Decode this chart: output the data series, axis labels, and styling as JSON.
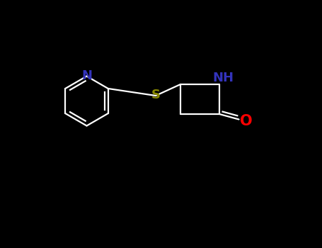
{
  "background_color": "#000000",
  "bond_color": "#ffffff",
  "N_color": "#3333bb",
  "S_color": "#888800",
  "O_color": "#ff0000",
  "NH_color": "#3333bb",
  "font_size_atoms": 13,
  "figsize": [
    4.55,
    3.5
  ],
  "dpi": 100,
  "lw": 1.6,
  "xlim": [
    0,
    9
  ],
  "ylim": [
    0,
    7
  ]
}
